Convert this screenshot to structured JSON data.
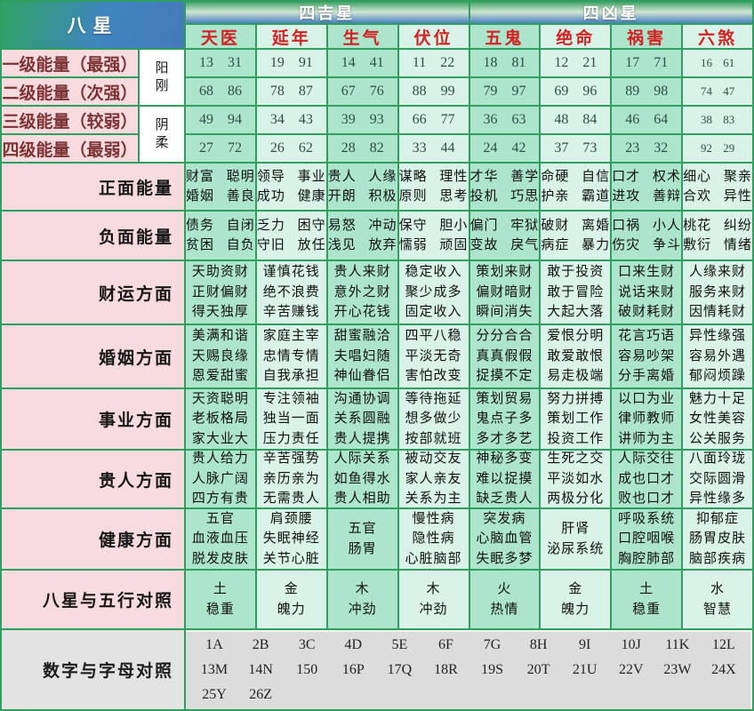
{
  "header": {
    "bastar": "八星",
    "groups": [
      {
        "label": "四吉星"
      },
      {
        "label": "四凶星"
      }
    ],
    "stars": [
      "天医",
      "延年",
      "生气",
      "伏位",
      "五鬼",
      "绝命",
      "祸害",
      "六煞"
    ]
  },
  "yinyang": [
    {
      "label": "阳\n刚"
    },
    {
      "label": "阴\n柔"
    }
  ],
  "energy_rows": [
    {
      "label": "一级能量（最强）",
      "values": [
        "13 31",
        "19 91",
        "14 41",
        "11 22",
        "18 81",
        "12 21",
        "17 71",
        "16 61"
      ]
    },
    {
      "label": "二级能量（次强）",
      "values": [
        "68 86",
        "78 87",
        "67 76",
        "88 99",
        "79 97",
        "69 96",
        "89 98",
        "74 47"
      ]
    },
    {
      "label": "三级能量（较弱）",
      "values": [
        "49 94",
        "34 43",
        "39 93",
        "66 77",
        "36 63",
        "48 84",
        "46 64",
        "38 83"
      ]
    },
    {
      "label": "四级能量（最弱）",
      "values": [
        "27 72",
        "26 62",
        "28 82",
        "33 44",
        "24 42",
        "37 73",
        "23 32",
        "92 29"
      ]
    }
  ],
  "category_rows": [
    {
      "label": "正面能量",
      "cells": [
        [
          "财富 聪明",
          "婚姻 善良"
        ],
        [
          "领导 事业",
          "成功 健康"
        ],
        [
          "贵人 人缘",
          "开朗 积极"
        ],
        [
          "谋略 理性",
          "原则 思考"
        ],
        [
          "才华 善学",
          "投机 巧思"
        ],
        [
          "命硬 自信",
          "护亲 霸道"
        ],
        [
          "口才 权术",
          "进攻 善辩"
        ],
        [
          "细心 聚亲",
          "合欢 异性"
        ]
      ]
    },
    {
      "label": "负面能量",
      "cells": [
        [
          "债务 自闭",
          "贫困 自负"
        ],
        [
          "乏力 困守",
          "守旧 放任"
        ],
        [
          "易怒 冲动",
          "浅见 放弃"
        ],
        [
          "保守 胆小",
          "懦弱 顽固"
        ],
        [
          "偏门 牢狱",
          "变故 戾气"
        ],
        [
          "破财 离婚",
          "病症 暴力"
        ],
        [
          "口祸 小人",
          "伤灾 争斗"
        ],
        [
          "桃花 纠纷",
          "敷衍 情绪"
        ]
      ]
    },
    {
      "label": "财运方面",
      "cells": [
        [
          "天助资财",
          "正财偏财",
          "得天独厚"
        ],
        [
          "谨慎花钱",
          "绝不浪费",
          "辛苦赚钱"
        ],
        [
          "贵人来财",
          "意外之财",
          "开心花钱"
        ],
        [
          "稳定收入",
          "聚少成多",
          "固定收入"
        ],
        [
          "策划来财",
          "偏财暗财",
          "瞬间消失"
        ],
        [
          "敢于投资",
          "敢于冒险",
          "大起大落"
        ],
        [
          "口来生财",
          "说话来财",
          "破财耗财"
        ],
        [
          "人缘来财",
          "服务来财",
          "因情耗财"
        ]
      ]
    },
    {
      "label": "婚姻方面",
      "cells": [
        [
          "美满和谐",
          "天赐良缘",
          "恩爱甜蜜"
        ],
        [
          "家庭主宰",
          "忠情专情",
          "自我承担"
        ],
        [
          "甜蜜融洽",
          "夫唱妇随",
          "神仙眷侣"
        ],
        [
          "四平八稳",
          "平淡无奇",
          "害怕改变"
        ],
        [
          "分分合合",
          "真真假假",
          "捉摸不定"
        ],
        [
          "爱恨分明",
          "敢爱敢恨",
          "易走极端"
        ],
        [
          "花言巧语",
          "容易吵架",
          "分手离婚"
        ],
        [
          "异性缘强",
          "容易外遇",
          "郁闷烦躁"
        ]
      ]
    },
    {
      "label": "事业方面",
      "cells": [
        [
          "天资聪明",
          "老板格局",
          "家大业大"
        ],
        [
          "专注领袖",
          "独当一面",
          "压力责任"
        ],
        [
          "沟通协调",
          "关系圆融",
          "贵人提携"
        ],
        [
          "等待拖延",
          "想多做少",
          "按部就班"
        ],
        [
          "策划贸易",
          "鬼点子多",
          "多才多艺"
        ],
        [
          "努力拼搏",
          "策划工作",
          "投资工作"
        ],
        [
          "以口为业",
          "律师教师",
          "讲师为主"
        ],
        [
          "魅力十足",
          "女性美容",
          "公关服务"
        ]
      ]
    },
    {
      "label": "贵人方面",
      "cells": [
        [
          "贵人给力",
          "人脉广阔",
          "四方有贵"
        ],
        [
          "辛苦强势",
          "亲历亲为",
          "无需贵人"
        ],
        [
          "人际关系",
          "如鱼得水",
          "贵人相助"
        ],
        [
          "被动交友",
          "家人亲友",
          "关系为主"
        ],
        [
          "神秘多变",
          "难以捉摸",
          "缺乏贵人"
        ],
        [
          "生死之交",
          "平淡如水",
          "两极分化"
        ],
        [
          "人际交往",
          "成也口才",
          "败也口才"
        ],
        [
          "八面玲珑",
          "交际圆滑",
          "异性缘多"
        ]
      ]
    },
    {
      "label": "健康方面",
      "cells": [
        [
          "五官",
          "血液血压",
          "脱发皮肤"
        ],
        [
          "肩颈腰",
          "失眠神经",
          "关节心脏"
        ],
        [
          "五官",
          "肠胃"
        ],
        [
          "慢性病",
          "隐性病",
          "心脏脑部"
        ],
        [
          "突发病",
          "心脑血管",
          "失眠多梦"
        ],
        [
          "肝肾",
          "泌尿系统"
        ],
        [
          "呼吸系统",
          "口腔咽喉",
          "胸腔肺部"
        ],
        [
          "抑郁症",
          "肠胃皮肤",
          "脑部疾病"
        ]
      ]
    },
    {
      "label": "八星与五行对照",
      "cells": [
        [
          "土",
          "稳重"
        ],
        [
          "金",
          "魄力"
        ],
        [
          "木",
          "冲劲"
        ],
        [
          "木",
          "冲劲"
        ],
        [
          "火",
          "热情"
        ],
        [
          "金",
          "魄力"
        ],
        [
          "土",
          "稳重"
        ],
        [
          "水",
          "智慧"
        ]
      ]
    }
  ],
  "letters": {
    "label": "数字与字母对照",
    "items": [
      "1A",
      "2B",
      "3C",
      "4D",
      "5E",
      "6F",
      "7G",
      "8H",
      "9I",
      "10J",
      "11K",
      "12L",
      "13M",
      "14N",
      "150",
      "16P",
      "17Q",
      "18R",
      "19S",
      "20T",
      "21U",
      "22V",
      "23W",
      "24X",
      "25Y",
      "26Z"
    ]
  },
  "colors": {
    "border_green": "#2f9f5f",
    "pink_label": "#f7dbdf",
    "mint_dark": "#ace4cc",
    "mint_light": "#d9f3e8",
    "star_red": "#d32222",
    "maroon_text": "#7d3333",
    "footer_gray": "#dcdcdc",
    "header_green": "#3ea064",
    "header_blue": "#4b80c2"
  }
}
